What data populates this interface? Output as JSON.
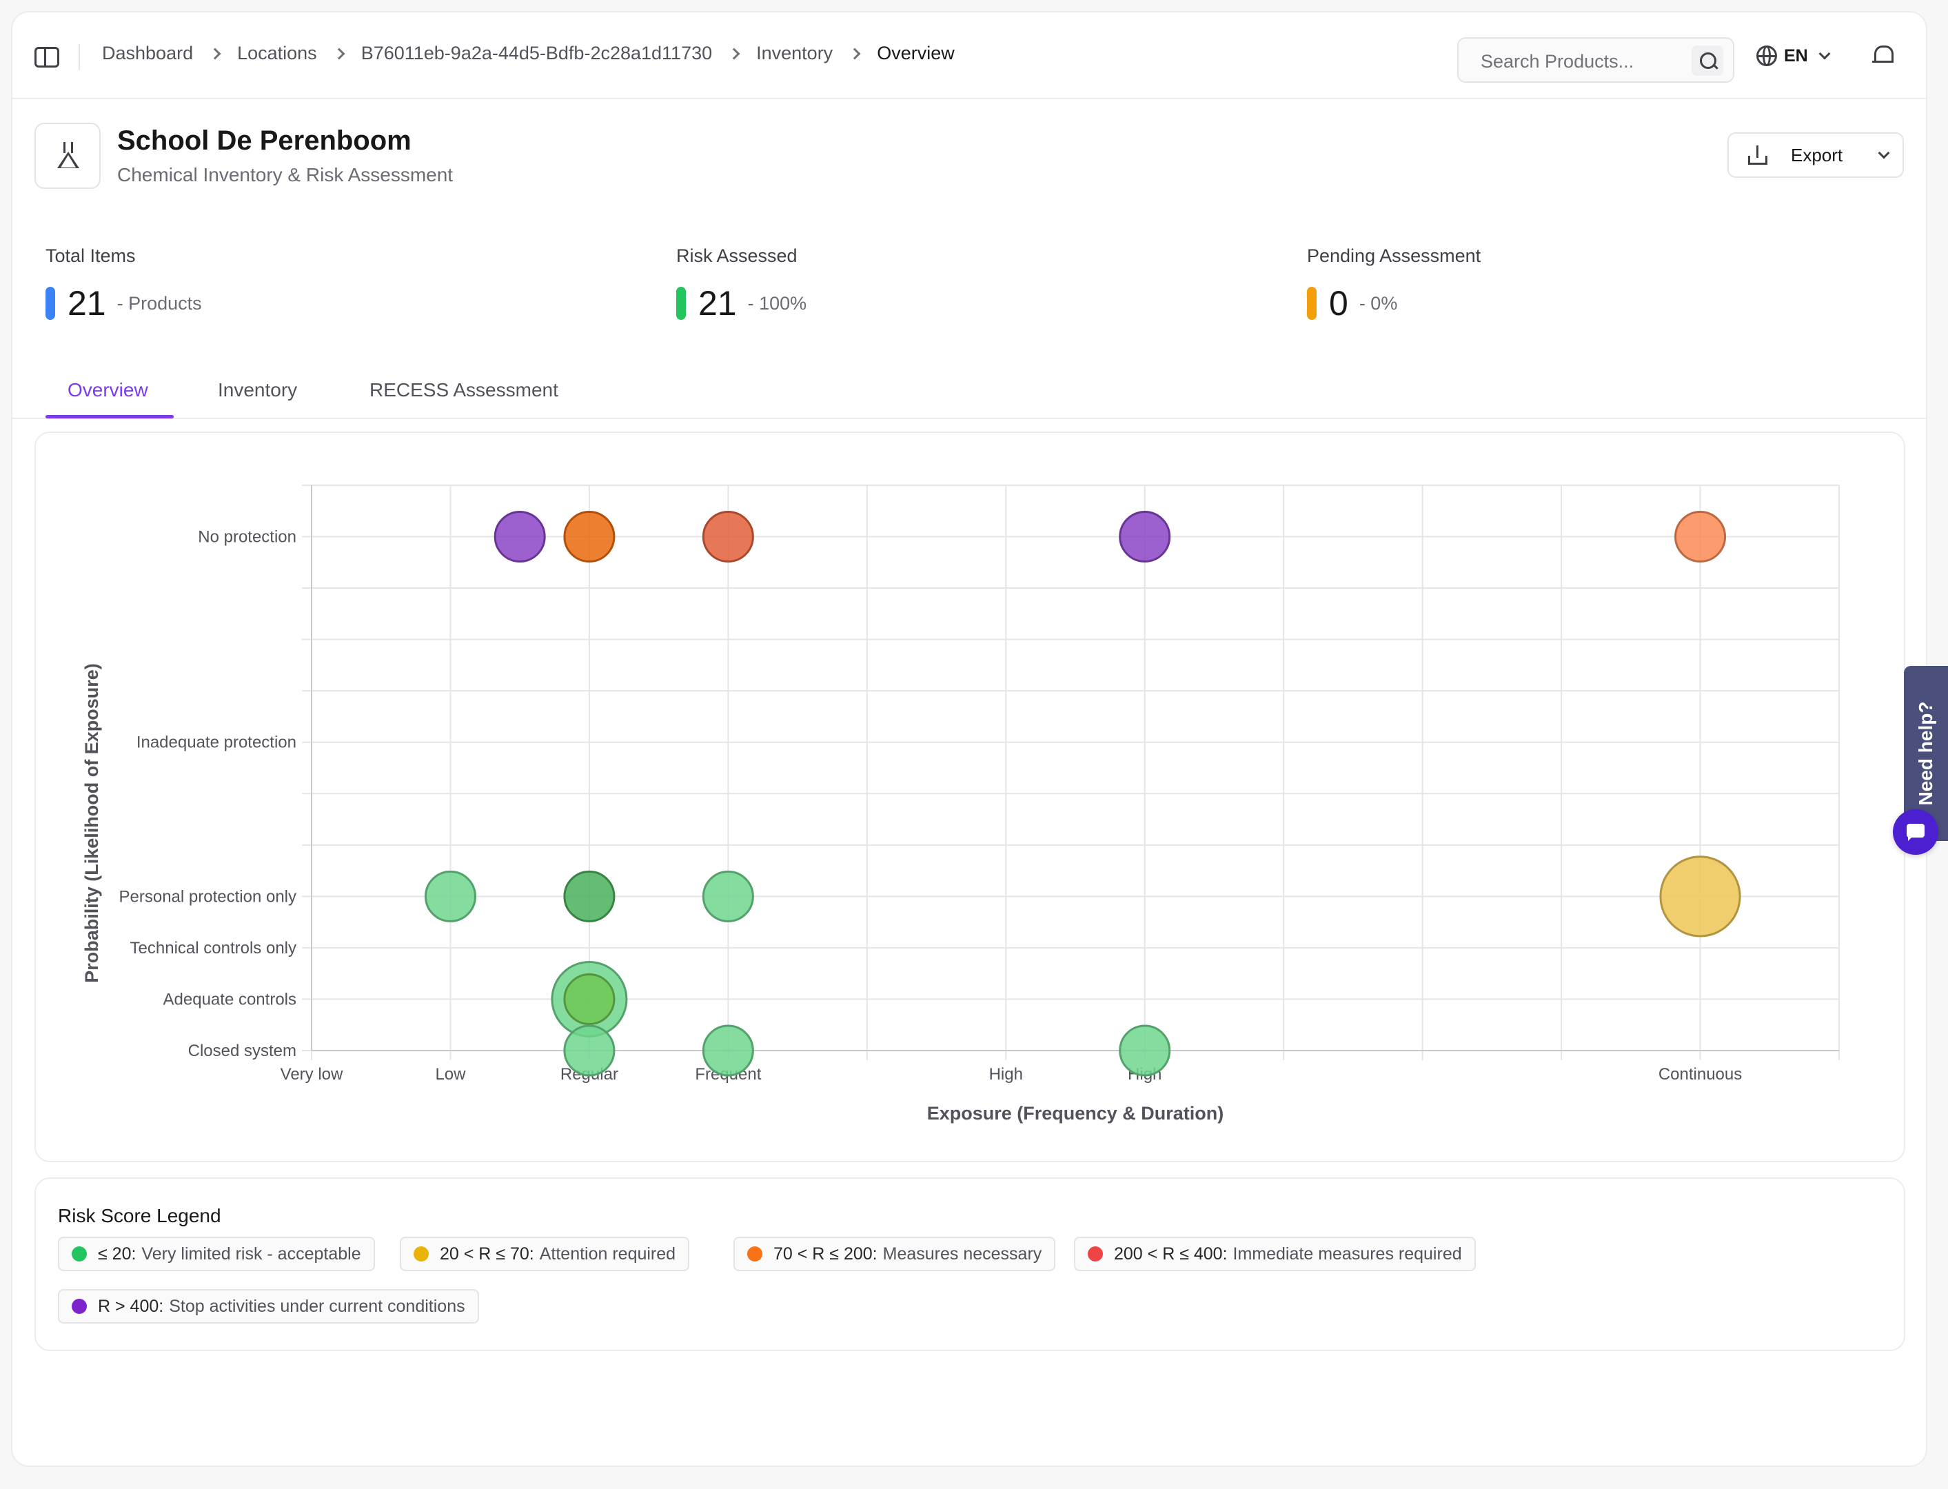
{
  "header": {
    "breadcrumbs": [
      "Dashboard",
      "Locations",
      "B76011eb-9a2a-44d5-Bdfb-2c28a1d11730",
      "Inventory",
      "Overview"
    ],
    "search_placeholder": "Search Products...",
    "language": "EN"
  },
  "page": {
    "title": "School De Perenboom",
    "subtitle": "Chemical Inventory & Risk Assessment",
    "export_label": "Export"
  },
  "stats": [
    {
      "label": "Total Items",
      "value": "21",
      "note": "- Products",
      "color": "#3b82f6"
    },
    {
      "label": "Risk Assessed",
      "value": "21",
      "note": "- 100%",
      "color": "#22c55e"
    },
    {
      "label": "Pending Assessment",
      "value": "0",
      "note": "- 0%",
      "color": "#f59e0b"
    }
  ],
  "tabs": [
    {
      "label": "Overview",
      "active": true
    },
    {
      "label": "Inventory",
      "active": false
    },
    {
      "label": "RECESS Assessment",
      "active": false
    }
  ],
  "chart_data": {
    "type": "scatter",
    "title": "",
    "xlabel": "Exposure (Frequency & Duration)",
    "ylabel": "Probability (Likelihood of Exposure)",
    "x_tick_labels": [
      {
        "x": 0.5,
        "label": "Very low"
      },
      {
        "x": 1,
        "label": "Low"
      },
      {
        "x": 1.5,
        "label": "Regular"
      },
      {
        "x": 2,
        "label": "Frequent"
      },
      {
        "x": 3,
        "label": "High"
      },
      {
        "x": 3.5,
        "label": "High"
      },
      {
        "x": 5.5,
        "label": "Continuous"
      }
    ],
    "y_tick_labels": [
      {
        "y": 0.5,
        "label": "Closed system"
      },
      {
        "y": 1,
        "label": "Adequate controls"
      },
      {
        "y": 1.5,
        "label": "Technical controls only"
      },
      {
        "y": 2,
        "label": "Personal protection only"
      },
      {
        "y": 3.5,
        "label": "Inadequate protection"
      },
      {
        "y": 5.5,
        "label": "No protection"
      }
    ],
    "xlim": [
      0.5,
      6
    ],
    "ylim": [
      0.5,
      6
    ],
    "grid": true,
    "points": [
      {
        "x": 1.25,
        "y": 5.5,
        "size": 1,
        "risk": "R > 400",
        "color": "#8b45c6"
      },
      {
        "x": 1.5,
        "y": 5.5,
        "size": 1,
        "risk": "70 < R ≤ 200",
        "color": "#ea6a0c"
      },
      {
        "x": 2,
        "y": 5.5,
        "size": 1,
        "risk": "70 < R ≤ 200",
        "color": "#e2603a"
      },
      {
        "x": 3.5,
        "y": 5.5,
        "size": 1,
        "risk": "R > 400",
        "color": "#8b45c6"
      },
      {
        "x": 5.5,
        "y": 5.5,
        "size": 1,
        "risk": "70 < R ≤ 200",
        "color": "#fb8a55"
      },
      {
        "x": 1,
        "y": 2,
        "size": 1,
        "risk": "≤ 20",
        "color": "#6fd68e"
      },
      {
        "x": 1.5,
        "y": 2,
        "size": 1,
        "risk": "≤ 20",
        "color": "#4ab05c"
      },
      {
        "x": 2,
        "y": 2,
        "size": 1,
        "risk": "≤ 20",
        "color": "#6fd68e"
      },
      {
        "x": 5.5,
        "y": 2,
        "size": 1.6,
        "risk": "20 < R ≤ 70",
        "color": "#efc553"
      },
      {
        "x": 1.5,
        "y": 1,
        "size": 1.5,
        "risk": "≤ 20",
        "color": "#6fd68e"
      },
      {
        "x": 1.5,
        "y": 1,
        "size": 1,
        "risk": "≤ 20",
        "color": "#6ec853"
      },
      {
        "x": 1.5,
        "y": 0.5,
        "size": 1,
        "risk": "≤ 20",
        "color": "#6fd68e"
      },
      {
        "x": 2,
        "y": 0.5,
        "size": 1,
        "risk": "≤ 20",
        "color": "#6fd68e"
      },
      {
        "x": 3.5,
        "y": 0.5,
        "size": 1,
        "risk": "≤ 20",
        "color": "#6fd68e"
      }
    ]
  },
  "legend": {
    "title": "Risk Score Legend",
    "items": [
      {
        "range": "≤ 20:",
        "text": "Very limited risk - acceptable",
        "color": "#22c55e"
      },
      {
        "range": "20 < R ≤ 70:",
        "text": "Attention required",
        "color": "#eab308"
      },
      {
        "range": "70 < R ≤ 200:",
        "text": "Measures necessary",
        "color": "#f97316"
      },
      {
        "range": "200 < R ≤ 400:",
        "text": "Immediate measures required",
        "color": "#ef4444"
      },
      {
        "range": "R > 400:",
        "text": "Stop activities under current conditions",
        "color": "#7e22ce"
      }
    ]
  },
  "help": {
    "label": "Need help?"
  }
}
